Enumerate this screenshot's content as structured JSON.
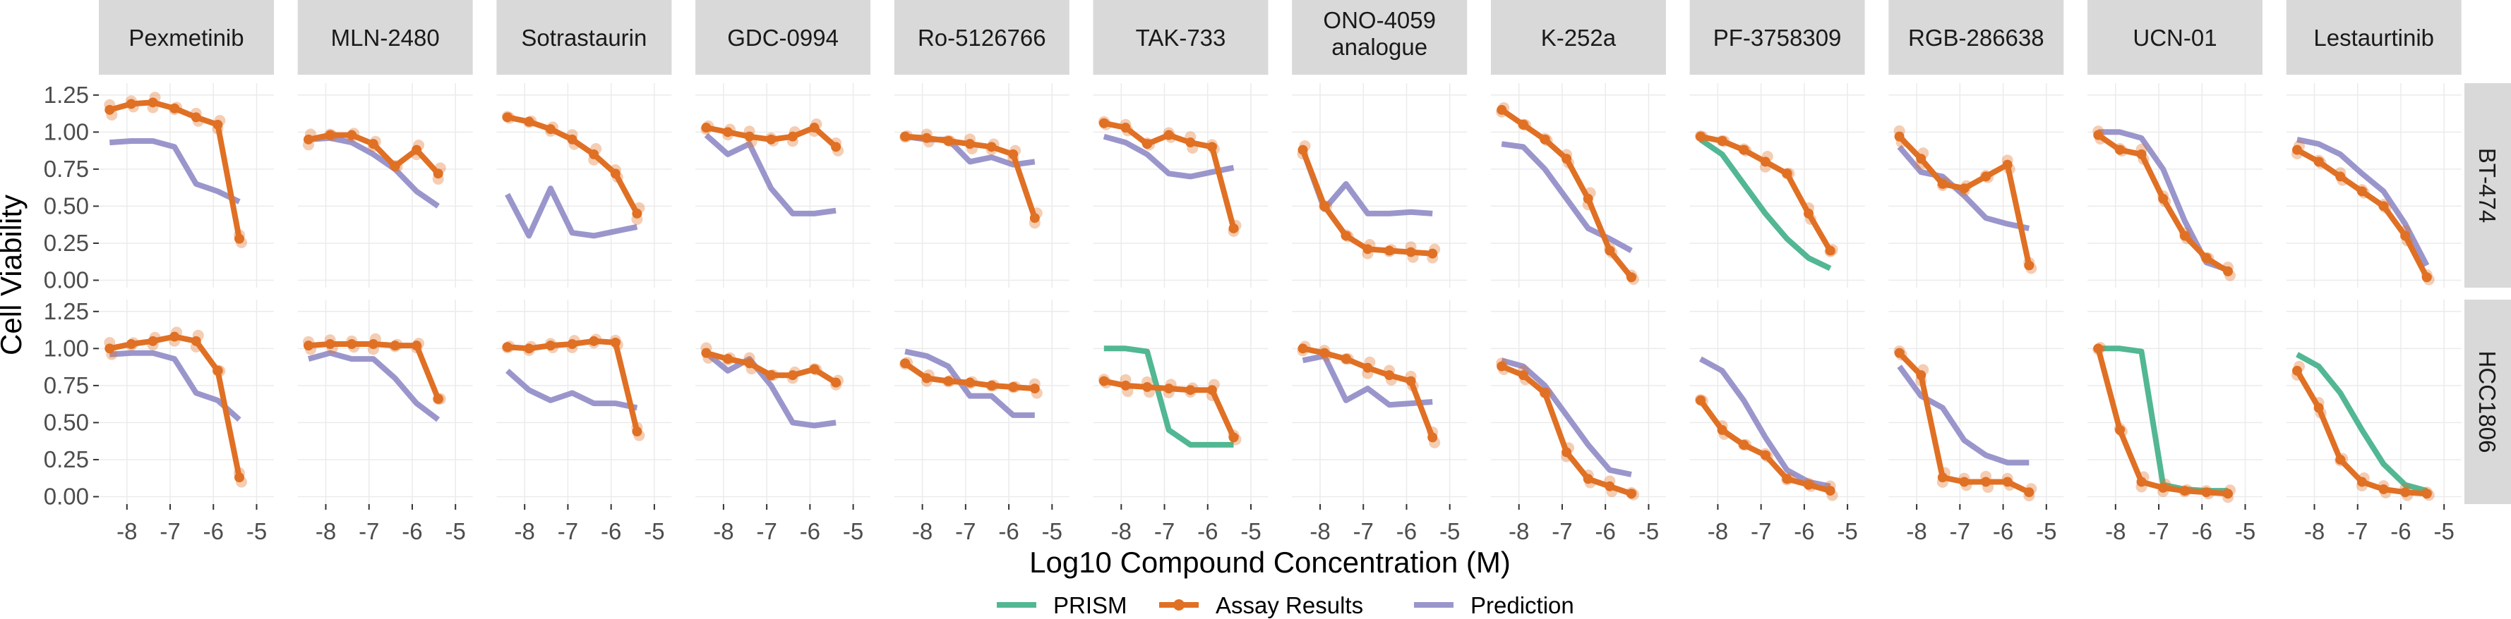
{
  "chart_data": {
    "type": "line",
    "title": "",
    "xlabel": "Log10 Compound Concentration (M)",
    "ylabel": "Cell Viability",
    "x_ticks": [
      -8,
      -7,
      -6,
      -5
    ],
    "x_tick_labels": [
      "-8",
      "-7",
      "-6",
      "-5"
    ],
    "y_ticks": [
      0,
      0.25,
      0.5,
      0.75,
      1,
      1.25
    ],
    "y_tick_labels": [
      "0.00",
      "0.25",
      "0.50",
      "0.75",
      "1.00",
      "1.25"
    ],
    "xlim": [
      -8.65,
      -4.6
    ],
    "ylim": [
      -0.05,
      1.33
    ],
    "legend_position": "bottom",
    "legend": [
      "PRISM",
      "Assay Results",
      "Prediction"
    ],
    "colors": {
      "PRISM": "#52b793",
      "Assay Results": "#e07024",
      "Prediction": "#9a96cc"
    },
    "x": [
      -8.4,
      -7.9,
      -7.4,
      -6.9,
      -6.4,
      -5.9,
      -5.4
    ],
    "columns": [
      "Pexmetinib",
      "MLN-2480",
      "Sotrastaurin",
      "GDC-0994",
      "Ro-5126766",
      "TAK-733",
      "ONO-4059 analogue",
      "K-252a",
      "PF-3758309",
      "RGB-286638",
      "UCN-01",
      "Lestaurtinib"
    ],
    "rows": [
      "BT-474",
      "HCC1806"
    ],
    "panels": [
      {
        "row": "BT-474",
        "column": "Pexmetinib",
        "assay": [
          1.15,
          1.19,
          1.2,
          1.16,
          1.1,
          1.05,
          0.28
        ],
        "prediction": [
          0.93,
          0.94,
          0.94,
          0.9,
          0.65,
          0.6,
          0.53
        ],
        "prism": null
      },
      {
        "row": "BT-474",
        "column": "MLN-2480",
        "assay": [
          0.95,
          0.98,
          0.98,
          0.92,
          0.77,
          0.88,
          0.72
        ],
        "prediction": [
          0.95,
          0.96,
          0.93,
          0.85,
          0.75,
          0.6,
          0.5
        ],
        "prism": null
      },
      {
        "row": "BT-474",
        "column": "Sotrastaurin",
        "assay": [
          1.1,
          1.07,
          1.02,
          0.95,
          0.85,
          0.72,
          0.45
        ],
        "prediction": [
          0.58,
          0.3,
          0.62,
          0.32,
          0.3,
          0.33,
          0.36
        ],
        "prism": null
      },
      {
        "row": "BT-474",
        "column": "GDC-0994",
        "assay": [
          1.03,
          1.0,
          0.97,
          0.95,
          0.97,
          1.03,
          0.9
        ],
        "prediction": [
          0.98,
          0.85,
          0.92,
          0.62,
          0.45,
          0.45,
          0.47
        ],
        "prism": null
      },
      {
        "row": "BT-474",
        "column": "Ro-5126766",
        "assay": [
          0.97,
          0.96,
          0.94,
          0.92,
          0.9,
          0.85,
          0.42
        ],
        "prediction": [
          0.97,
          0.95,
          0.95,
          0.8,
          0.83,
          0.78,
          0.8
        ],
        "prism": null
      },
      {
        "row": "BT-474",
        "column": "TAK-733",
        "assay": [
          1.06,
          1.03,
          0.92,
          0.98,
          0.93,
          0.9,
          0.35
        ],
        "prediction": [
          0.97,
          0.93,
          0.85,
          0.72,
          0.7,
          0.73,
          0.76
        ],
        "prism": null
      },
      {
        "row": "BT-474",
        "column": "ONO-4059 analogue",
        "assay": [
          0.88,
          0.5,
          0.3,
          0.21,
          0.2,
          0.19,
          0.18
        ],
        "prediction": [
          0.88,
          0.48,
          0.65,
          0.45,
          0.45,
          0.46,
          0.45
        ],
        "prism": null
      },
      {
        "row": "BT-474",
        "column": "K-252a",
        "assay": [
          1.15,
          1.05,
          0.95,
          0.82,
          0.55,
          0.2,
          0.02
        ],
        "prediction": [
          0.92,
          0.9,
          0.75,
          0.55,
          0.35,
          0.28,
          0.2
        ],
        "prism": null
      },
      {
        "row": "BT-474",
        "column": "PF-3758309",
        "assay": [
          0.97,
          0.94,
          0.88,
          0.8,
          0.72,
          0.45,
          0.2
        ],
        "prediction": null,
        "prism": [
          0.95,
          0.85,
          0.65,
          0.45,
          0.28,
          0.15,
          0.08
        ]
      },
      {
        "row": "BT-474",
        "column": "RGB-286638",
        "assay": [
          0.97,
          0.82,
          0.65,
          0.62,
          0.7,
          0.78,
          0.1
        ],
        "prediction": [
          0.9,
          0.73,
          0.7,
          0.57,
          0.42,
          0.38,
          0.35
        ],
        "prism": null
      },
      {
        "row": "BT-474",
        "column": "UCN-01",
        "assay": [
          0.98,
          0.88,
          0.85,
          0.55,
          0.3,
          0.15,
          0.06
        ],
        "prediction": [
          1.0,
          1.0,
          0.96,
          0.75,
          0.4,
          0.12,
          0.07
        ],
        "prism": null
      },
      {
        "row": "BT-474",
        "column": "Lestaurtinib",
        "assay": [
          0.88,
          0.8,
          0.7,
          0.6,
          0.5,
          0.3,
          0.02
        ],
        "prediction": [
          0.95,
          0.92,
          0.85,
          0.72,
          0.6,
          0.38,
          0.1
        ],
        "prism": null
      },
      {
        "row": "HCC1806",
        "column": "Pexmetinib",
        "assay": [
          1.0,
          1.03,
          1.05,
          1.08,
          1.05,
          0.85,
          0.13
        ],
        "prediction": [
          0.96,
          0.97,
          0.97,
          0.93,
          0.7,
          0.65,
          0.52
        ],
        "prism": null
      },
      {
        "row": "HCC1806",
        "column": "MLN-2480",
        "assay": [
          1.02,
          1.03,
          1.03,
          1.03,
          1.02,
          1.02,
          0.66
        ],
        "prediction": [
          0.93,
          0.97,
          0.93,
          0.93,
          0.8,
          0.63,
          0.52
        ],
        "prism": null
      },
      {
        "row": "HCC1806",
        "column": "Sotrastaurin",
        "assay": [
          1.01,
          1.0,
          1.02,
          1.03,
          1.05,
          1.04,
          0.44
        ],
        "prediction": [
          0.85,
          0.72,
          0.65,
          0.7,
          0.63,
          0.63,
          0.6
        ],
        "prism": null
      },
      {
        "row": "HCC1806",
        "column": "GDC-0994",
        "assay": [
          0.97,
          0.93,
          0.9,
          0.82,
          0.82,
          0.86,
          0.77
        ],
        "prediction": [
          0.97,
          0.85,
          0.93,
          0.75,
          0.5,
          0.48,
          0.5
        ],
        "prism": null
      },
      {
        "row": "HCC1806",
        "column": "Ro-5126766",
        "assay": [
          0.9,
          0.8,
          0.78,
          0.77,
          0.75,
          0.74,
          0.73
        ],
        "prediction": [
          0.98,
          0.95,
          0.88,
          0.68,
          0.68,
          0.55,
          0.55
        ],
        "prism": null
      },
      {
        "row": "HCC1806",
        "column": "TAK-733",
        "assay": [
          0.78,
          0.75,
          0.74,
          0.73,
          0.72,
          0.72,
          0.4
        ],
        "prediction": null,
        "prism": [
          1.0,
          1.0,
          0.98,
          0.45,
          0.35,
          0.35,
          0.35
        ]
      },
      {
        "row": "HCC1806",
        "column": "ONO-4059 analogue",
        "assay": [
          1.0,
          0.97,
          0.93,
          0.87,
          0.82,
          0.78,
          0.4
        ],
        "prediction": [
          0.92,
          0.95,
          0.65,
          0.73,
          0.62,
          0.63,
          0.64
        ],
        "prism": null
      },
      {
        "row": "HCC1806",
        "column": "K-252a",
        "assay": [
          0.88,
          0.82,
          0.7,
          0.3,
          0.12,
          0.07,
          0.02
        ],
        "prediction": [
          0.92,
          0.88,
          0.75,
          0.55,
          0.35,
          0.18,
          0.15
        ],
        "prism": null
      },
      {
        "row": "HCC1806",
        "column": "PF-3758309",
        "assay": [
          0.65,
          0.45,
          0.35,
          0.28,
          0.12,
          0.08,
          0.04
        ],
        "prediction": [
          0.93,
          0.85,
          0.65,
          0.4,
          0.18,
          0.1,
          0.07
        ],
        "prism": null
      },
      {
        "row": "HCC1806",
        "column": "RGB-286638",
        "assay": [
          0.97,
          0.82,
          0.13,
          0.1,
          0.1,
          0.1,
          0.03
        ],
        "prediction": [
          0.88,
          0.68,
          0.6,
          0.38,
          0.28,
          0.23,
          0.23
        ],
        "prism": null
      },
      {
        "row": "HCC1806",
        "column": "UCN-01",
        "assay": [
          1.0,
          0.45,
          0.1,
          0.06,
          0.04,
          0.03,
          0.02
        ],
        "prediction": null,
        "prism": [
          1.0,
          1.0,
          0.98,
          0.08,
          0.05,
          0.04,
          0.04
        ]
      },
      {
        "row": "HCC1806",
        "column": "Lestaurtinib",
        "assay": [
          0.85,
          0.6,
          0.25,
          0.1,
          0.05,
          0.03,
          0.02
        ],
        "prediction": null,
        "prism": [
          0.96,
          0.88,
          0.7,
          0.45,
          0.22,
          0.08,
          0.04
        ]
      }
    ]
  }
}
